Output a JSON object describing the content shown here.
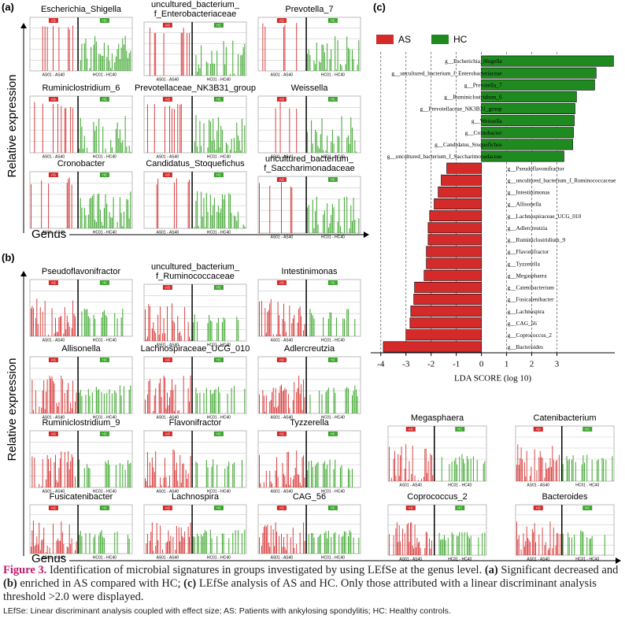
{
  "panel_labels": [
    "(a)",
    "(b)",
    "(c)"
  ],
  "axis_labels": {
    "y": "Relative expression",
    "x": "Genus"
  },
  "group_labels": [
    "AS",
    "HC"
  ],
  "sample_ranges": [
    "AS01 - AS40",
    "HC01 - HC40"
  ],
  "panel_a": {
    "charts": [
      {
        "title": [
          "Escherichia_Shigella"
        ]
      },
      {
        "title": [
          "uncultured_bacterium_",
          "f_Enterobacteriaceae"
        ]
      },
      {
        "title": [
          "Prevotella_7"
        ]
      },
      {
        "title": [
          "Ruminiclostridium_6"
        ]
      },
      {
        "title": [
          "Prevotellaceae_NK3B31_group"
        ]
      },
      {
        "title": [
          "Weissella"
        ]
      },
      {
        "title": [
          "Cronobacter"
        ]
      },
      {
        "title": [
          "Candidatus_Stoquefichus"
        ]
      },
      {
        "title": [
          "uncultured_bacterium_",
          "f_Saccharimonadaceae"
        ]
      }
    ]
  },
  "panel_b": {
    "charts": [
      {
        "title": [
          "Pseudoflavonifractor"
        ]
      },
      {
        "title": [
          "uncultured_bacterium_",
          "f_Ruminococcaceae"
        ]
      },
      {
        "title": [
          "Intestinimonas"
        ]
      },
      {
        "title": [
          "Allisonella"
        ]
      },
      {
        "title": [
          "Lachnospiraceae_UCG_010"
        ]
      },
      {
        "title": [
          "Adlercreutzia"
        ]
      },
      {
        "title": [
          "Ruminiclostridium_9"
        ]
      },
      {
        "title": [
          "Flavonifractor"
        ]
      },
      {
        "title": [
          "Tyzzerella"
        ]
      },
      {
        "title": [
          "Fusicatenibacter"
        ]
      },
      {
        "title": [
          "Lachnospira"
        ]
      },
      {
        "title": [
          "CAG_56"
        ]
      },
      {
        "title": [
          "Megasphaera"
        ]
      },
      {
        "title": [
          "Catenibacterium"
        ]
      },
      {
        "title": [
          "Coprococcus_2"
        ]
      },
      {
        "title": [
          "Bacteroides"
        ]
      }
    ]
  },
  "chart_data": {
    "type": "barh",
    "xlabel": "LDA SCORE (log 10)",
    "categories": [
      "g__Escherichia_Shigella",
      "g__uncultured_bacterium_f_Enterobacteriaceae",
      "g__Prevotella_7",
      "g__Ruminiclostridium_6",
      "g__Prevotellaceae_NK3B31_group",
      "g__Weissella",
      "g__Cronobacter",
      "g__Candidatus_Stoquefichus",
      "g__uncultured_bacterium_f_Saccharimonadaceae",
      "g__Pseudoflavonifractor",
      "g__uncultured_bacterium_f_Ruminococcaceae",
      "g__Intestinimonas",
      "g__Allisonella",
      "g__Lachnospiraceae_UCG_010",
      "g__Adlercreutzia",
      "g__Ruminiclostridium_9",
      "g__Flavonifractor",
      "g__Tyzzerella",
      "g__Megasphaera",
      "g__Catenibacterium",
      "g__Fusicatenibacter",
      "g__Lachnospira",
      "g__CAG_56",
      "g__Coprococcus_2",
      "g__Bacteroides"
    ],
    "series": [
      {
        "name": "AS",
        "color": "#d42a2a",
        "values": [
          null,
          null,
          null,
          null,
          null,
          null,
          null,
          null,
          null,
          -1.38,
          -1.6,
          -1.72,
          -1.88,
          -2.06,
          -2.12,
          -2.12,
          -2.19,
          -2.19,
          -2.28,
          -2.66,
          -2.69,
          -2.81,
          -2.84,
          -3.0,
          -3.9
        ]
      },
      {
        "name": "HC",
        "color": "#1f8a1f",
        "values": [
          5.25,
          4.56,
          4.5,
          3.78,
          3.72,
          3.69,
          3.66,
          3.63,
          3.28,
          null,
          null,
          null,
          null,
          null,
          null,
          null,
          null,
          null,
          null,
          null,
          null,
          null,
          null,
          null,
          null
        ]
      }
    ],
    "xlim": [
      -4.4,
      5.3
    ],
    "xticks": [
      -4,
      -3,
      -2,
      -1,
      0,
      1,
      2,
      3
    ],
    "grid": true,
    "legend": "top-left"
  },
  "caption": {
    "label": "Figure 3.",
    "parts": [
      "Identification of microbial signatures in groups investigated by using LEfSe at the genus level. ",
      "(a)",
      " Significant decreased and ",
      "(b)",
      " enriched in AS compared with HC; ",
      "(c)",
      " LEfSe analysis of AS and HC. Only those attributed with a linear discriminant analysis threshold >2.0 were displayed."
    ],
    "footnote": "LEfSe: Linear discriminant analysis coupled with effect size; AS: Patients with ankylosing spondylitis; HC: Healthy controls."
  }
}
